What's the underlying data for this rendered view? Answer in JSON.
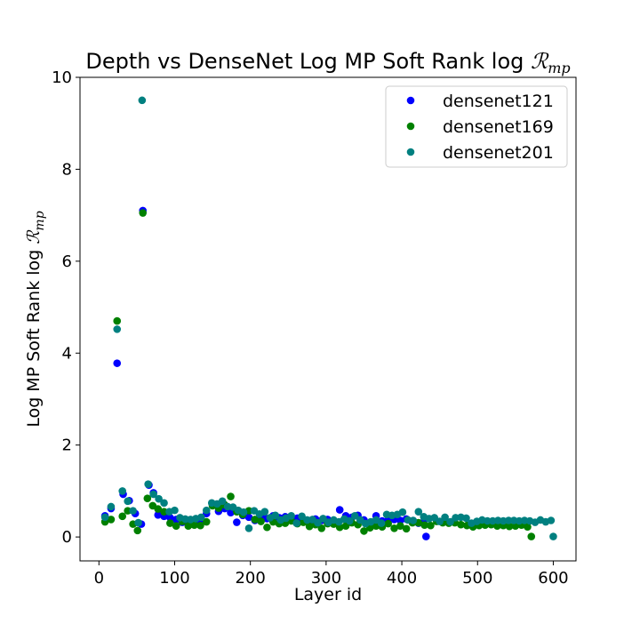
{
  "chart_data": {
    "type": "scatter",
    "title_text": "Depth vs DenseNet Log MP Soft Rank log ",
    "title_math": "ℛ",
    "title_sub": "mp",
    "xlabel": "Layer id",
    "ylabel_text": "Log MP Soft Rank log ",
    "ylabel_math": "ℛ",
    "ylabel_sub": "mp",
    "xlim": [
      -25,
      630
    ],
    "ylim": [
      -0.52,
      10.0
    ],
    "xticks": [
      0,
      100,
      200,
      300,
      400,
      500,
      600
    ],
    "yticks": [
      0,
      2,
      4,
      6,
      8,
      10
    ],
    "legend_position": "upper right",
    "series": [
      {
        "name": "densenet121",
        "color": "#0000ff",
        "x": [
          8,
          16,
          24,
          32,
          40,
          48,
          56,
          58,
          66,
          72,
          78,
          86,
          94,
          102,
          110,
          118,
          126,
          134,
          142,
          150,
          158,
          166,
          174,
          182,
          190,
          198,
          206,
          214,
          222,
          230,
          238,
          246,
          254,
          262,
          270,
          278,
          286,
          294,
          302,
          310,
          318,
          326,
          334,
          342,
          350,
          358,
          366,
          374,
          382,
          390,
          398,
          406,
          414,
          422,
          430,
          432
        ],
        "y": [
          0.46,
          0.62,
          3.78,
          0.93,
          0.79,
          0.51,
          0.28,
          7.1,
          1.13,
          0.96,
          0.48,
          0.45,
          0.42,
          0.38,
          0.32,
          0.36,
          0.32,
          0.29,
          0.51,
          0.69,
          0.56,
          0.62,
          0.53,
          0.32,
          0.47,
          0.43,
          0.36,
          0.47,
          0.4,
          0.46,
          0.42,
          0.44,
          0.36,
          0.41,
          0.33,
          0.35,
          0.39,
          0.36,
          0.38,
          0.36,
          0.59,
          0.46,
          0.43,
          0.47,
          0.37,
          0.29,
          0.46,
          0.35,
          0.37,
          0.38,
          0.36,
          0.39,
          0.35,
          0.3,
          0.38,
          0.01
        ]
      },
      {
        "name": "densenet169",
        "color": "#008000",
        "x": [
          8,
          16,
          24,
          31,
          38,
          45,
          51,
          58,
          64,
          71,
          78,
          86,
          94,
          102,
          110,
          118,
          126,
          134,
          142,
          150,
          158,
          166,
          174,
          182,
          190,
          198,
          206,
          214,
          222,
          230,
          238,
          246,
          254,
          262,
          270,
          278,
          286,
          294,
          302,
          310,
          318,
          326,
          334,
          342,
          350,
          358,
          366,
          374,
          382,
          390,
          398,
          406,
          414,
          422,
          430,
          438,
          446,
          454,
          462,
          470,
          478,
          486,
          494,
          502,
          510,
          518,
          526,
          534,
          542,
          550,
          558,
          566,
          571
        ],
        "y": [
          0.33,
          0.38,
          4.7,
          0.45,
          0.57,
          0.28,
          0.14,
          7.05,
          0.84,
          0.68,
          0.61,
          0.55,
          0.3,
          0.24,
          0.34,
          0.24,
          0.26,
          0.25,
          0.33,
          0.68,
          0.63,
          0.7,
          0.88,
          0.55,
          0.49,
          0.57,
          0.38,
          0.34,
          0.21,
          0.33,
          0.29,
          0.3,
          0.35,
          0.29,
          0.32,
          0.23,
          0.27,
          0.19,
          0.29,
          0.28,
          0.21,
          0.24,
          0.31,
          0.27,
          0.13,
          0.2,
          0.24,
          0.22,
          0.29,
          0.19,
          0.24,
          0.18,
          0.31,
          0.31,
          0.26,
          0.25,
          0.34,
          0.31,
          0.3,
          0.31,
          0.27,
          0.25,
          0.22,
          0.25,
          0.26,
          0.27,
          0.24,
          0.25,
          0.23,
          0.24,
          0.26,
          0.22,
          0.01
        ]
      },
      {
        "name": "densenet201",
        "color": "#008080",
        "x": [
          8,
          16,
          24,
          31,
          38,
          45,
          52,
          57,
          65,
          72,
          79,
          86,
          93,
          100,
          107,
          114,
          121,
          128,
          135,
          142,
          149,
          156,
          163,
          170,
          177,
          184,
          191,
          198,
          205,
          212,
          219,
          226,
          233,
          240,
          247,
          254,
          261,
          268,
          275,
          282,
          289,
          296,
          303,
          310,
          317,
          324,
          331,
          338,
          345,
          352,
          359,
          366,
          373,
          380,
          387,
          394,
          401,
          408,
          415,
          422,
          429,
          436,
          443,
          450,
          457,
          464,
          471,
          478,
          485,
          492,
          499,
          506,
          513,
          520,
          527,
          534,
          541,
          548,
          555,
          562,
          569,
          576,
          583,
          590,
          597,
          600
        ],
        "y": [
          0.43,
          0.66,
          4.52,
          1.0,
          0.78,
          0.57,
          0.31,
          9.5,
          1.15,
          0.93,
          0.83,
          0.74,
          0.55,
          0.58,
          0.42,
          0.39,
          0.38,
          0.4,
          0.43,
          0.58,
          0.74,
          0.72,
          0.78,
          0.66,
          0.65,
          0.58,
          0.54,
          0.19,
          0.57,
          0.5,
          0.55,
          0.42,
          0.47,
          0.37,
          0.41,
          0.46,
          0.3,
          0.45,
          0.37,
          0.38,
          0.31,
          0.4,
          0.32,
          0.37,
          0.33,
          0.39,
          0.35,
          0.46,
          0.37,
          0.29,
          0.33,
          0.37,
          0.3,
          0.49,
          0.47,
          0.49,
          0.54,
          0.37,
          0.36,
          0.55,
          0.44,
          0.4,
          0.42,
          0.34,
          0.43,
          0.33,
          0.42,
          0.43,
          0.41,
          0.3,
          0.34,
          0.37,
          0.35,
          0.35,
          0.36,
          0.35,
          0.36,
          0.36,
          0.35,
          0.36,
          0.35,
          0.32,
          0.37,
          0.33,
          0.36,
          0.01
        ]
      }
    ]
  }
}
